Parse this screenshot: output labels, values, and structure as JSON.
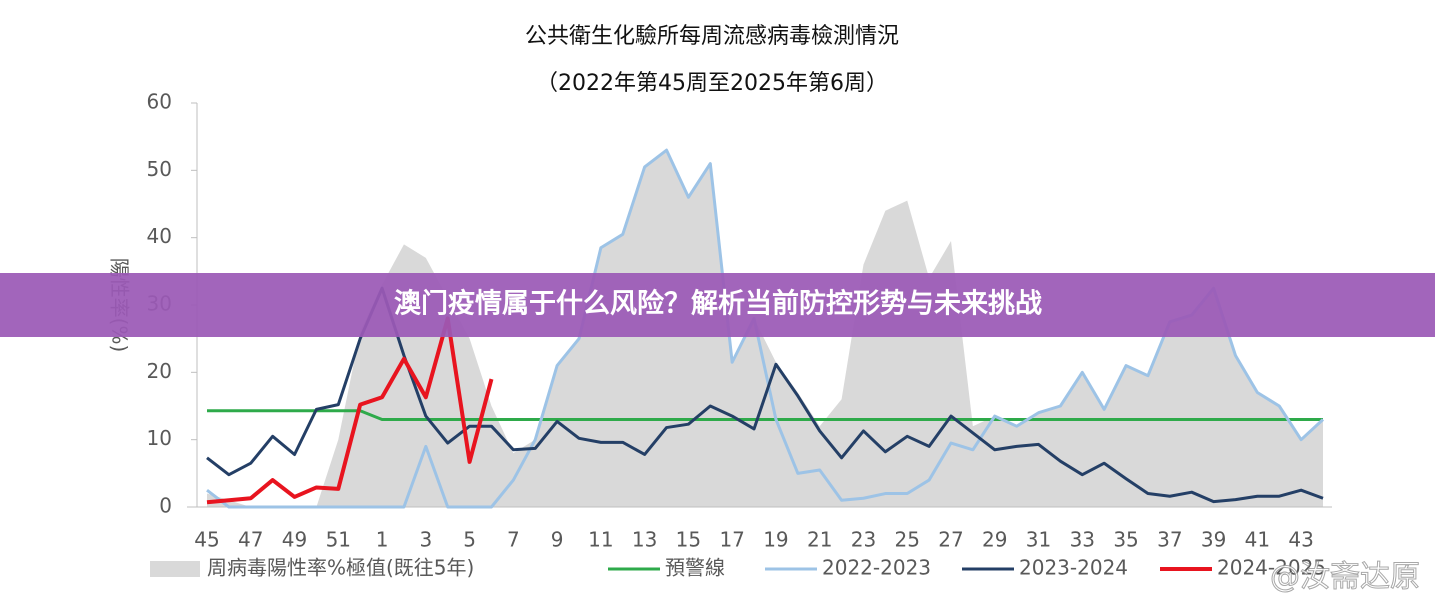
{
  "chart_data": {
    "type": "line",
    "title": "公共衛生化驗所每周流感病毒檢測情況",
    "subtitle": "（2022年第45周至2025年第6周）",
    "ylabel": "陽性率(%)",
    "categories": [
      "45",
      null,
      "47",
      null,
      "49",
      null,
      "51",
      null,
      "1",
      null,
      "3",
      null,
      "5",
      null,
      "7",
      null,
      "9",
      null,
      "11",
      null,
      "13",
      null,
      "15",
      null,
      "17",
      null,
      "19",
      null,
      "21",
      null,
      "23",
      null,
      "25",
      null,
      "27",
      null,
      "29",
      null,
      "31",
      null,
      "33",
      null,
      "35",
      null,
      "37",
      null,
      "39",
      null,
      "41",
      null,
      "43",
      null
    ],
    "ylim": [
      0,
      60
    ],
    "yticks": [
      0,
      10,
      20,
      30,
      40,
      50,
      60
    ],
    "series": [
      {
        "name": "周病毒陽性率%極值(既往5年)",
        "type": "area",
        "color": "#d9d9d9",
        "values": [
          2,
          1,
          0,
          0,
          0,
          0,
          10,
          26,
          33,
          39,
          37,
          31,
          25,
          15,
          8,
          10,
          21,
          25,
          38.5,
          40.5,
          50.5,
          53,
          46,
          51,
          21.5,
          28,
          21.5,
          17,
          12,
          16,
          36,
          44,
          45.5,
          34,
          39.5,
          12,
          13.5,
          12,
          14,
          15,
          20,
          14.5,
          21,
          19.5,
          27.5,
          28.5,
          32.5,
          22.5,
          17,
          15,
          10,
          13
        ]
      },
      {
        "name": "預警線",
        "color": "#2eaa4a",
        "values": [
          14.3,
          14.3,
          14.3,
          14.3,
          14.3,
          14.3,
          14.3,
          14.3,
          13,
          13,
          13,
          13,
          13,
          13,
          13,
          13,
          13,
          13,
          13,
          13,
          13,
          13,
          13,
          13,
          13,
          13,
          13,
          13,
          13,
          13,
          13,
          13,
          13,
          13,
          13,
          13,
          13,
          13,
          13,
          13,
          13,
          13,
          13,
          13,
          13,
          13,
          13,
          13,
          13,
          13,
          13,
          13
        ]
      },
      {
        "name": "2022-2023",
        "color": "#9dc3e6",
        "values": [
          2.5,
          0,
          0,
          0,
          0,
          0,
          0,
          0,
          0,
          0,
          9,
          0,
          0,
          0,
          4,
          10,
          21,
          25,
          38.5,
          40.5,
          50.5,
          53,
          46,
          51,
          21.5,
          28,
          13,
          5,
          5.5,
          1,
          1.3,
          2,
          2,
          4,
          9.5,
          8.5,
          13.5,
          12,
          14,
          15,
          20,
          14.5,
          21,
          19.5,
          27.5,
          28.5,
          32.5,
          22.5,
          17,
          15,
          10,
          13
        ]
      },
      {
        "name": "2023-2024",
        "color": "#243f66",
        "values": [
          7.3,
          4.8,
          6.5,
          10.5,
          7.8,
          14.5,
          15.2,
          25,
          32.5,
          22.5,
          13.5,
          9.5,
          12,
          12,
          8.5,
          8.7,
          12.7,
          10.2,
          9.6,
          9.6,
          7.8,
          11.8,
          12.3,
          15,
          13.5,
          11.6,
          21.2,
          16.5,
          11.3,
          7.3,
          11.3,
          8.2,
          10.5,
          9,
          13.5,
          11,
          8.5,
          9,
          9.3,
          6.8,
          4.8,
          6.5,
          4.2,
          2,
          1.6,
          2.2,
          0.8,
          1.1,
          1.6,
          1.6,
          2.5,
          1.3
        ]
      },
      {
        "name": "2024-2025",
        "color": "#e8141f",
        "width": 4,
        "values": [
          0.7,
          1,
          1.3,
          4,
          1.5,
          2.9,
          2.7,
          15.2,
          16.3,
          22,
          16.3,
          28,
          6.7,
          19,
          null,
          null,
          null,
          null,
          null,
          null,
          null,
          null,
          null,
          null,
          null,
          null,
          null,
          null,
          null,
          null,
          null,
          null,
          null,
          null,
          null,
          null,
          null,
          null,
          null,
          null,
          null,
          null,
          null,
          null,
          null,
          null,
          null,
          null,
          null,
          null,
          null,
          null
        ]
      }
    ]
  },
  "banner": "澳门疫情属于什么风险？解析当前防控形势与未来挑战",
  "watermark": "@汝斋达原"
}
